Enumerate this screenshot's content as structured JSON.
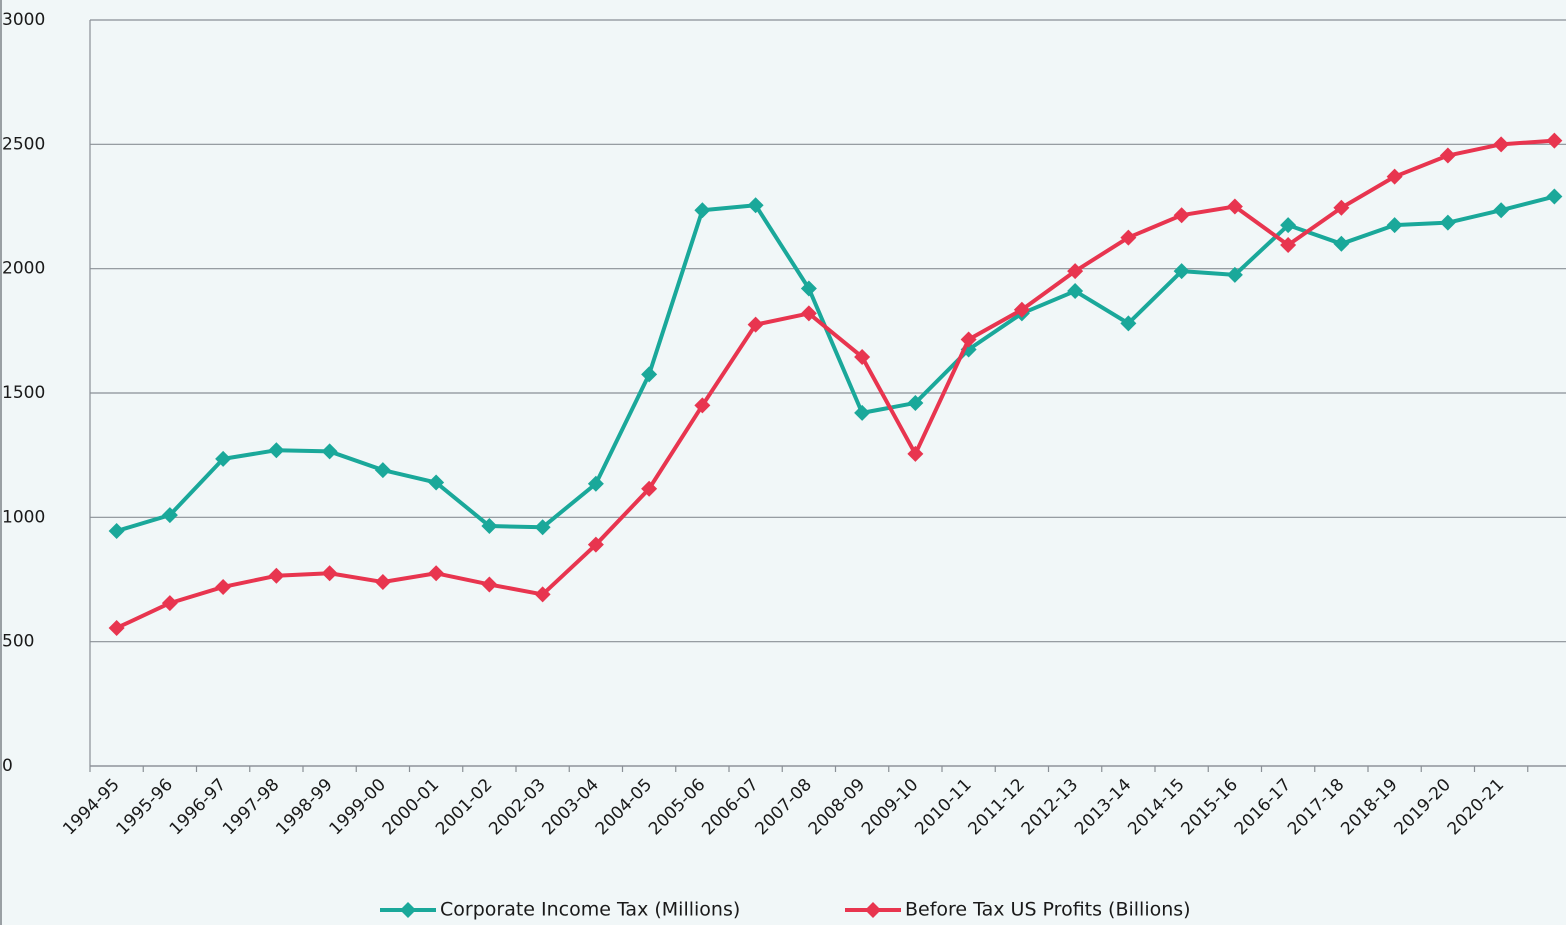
{
  "chart_data": {
    "type": "line",
    "categories": [
      "1994-95",
      "1995-96",
      "1996-97",
      "1997-98",
      "1998-99",
      "1999-00",
      "2000-01",
      "2001-02",
      "2002-03",
      "2003-04",
      "2004-05",
      "2005-06",
      "2006-07",
      "2007-08",
      "2008-09",
      "2009-10",
      "2010-11",
      "2011-12",
      "2012-13",
      "2013-14",
      "2014-15",
      "2015-16",
      "2016-17",
      "2017-18",
      "2018-19",
      "2019-20",
      "2020-21",
      null
    ],
    "series": [
      {
        "name": "Corporate Income Tax (Millions)",
        "color": "#1aa89a",
        "values": [
          945,
          1009,
          1235,
          1270,
          1265,
          1190,
          1140,
          965,
          960,
          1135,
          1575,
          2235,
          2255,
          1920,
          1420,
          1460,
          1675,
          1820,
          1910,
          1780,
          1990,
          1975,
          2175,
          2100,
          2175,
          2185,
          2235,
          2290
        ]
      },
      {
        "name": "Before Tax US Profits (Billions)",
        "color": "#e8354f",
        "values": [
          555,
          655,
          720,
          765,
          775,
          740,
          775,
          730,
          690,
          890,
          1115,
          1450,
          1775,
          1820,
          1645,
          1255,
          1715,
          1835,
          1990,
          2125,
          2215,
          2250,
          2095,
          2245,
          2370,
          2455,
          2500,
          2515
        ]
      }
    ],
    "ylim": [
      0,
      3000
    ],
    "yticks": [
      0,
      500,
      1000,
      1500,
      2000,
      2500,
      3000
    ],
    "grid": true,
    "legend": "bottom"
  }
}
